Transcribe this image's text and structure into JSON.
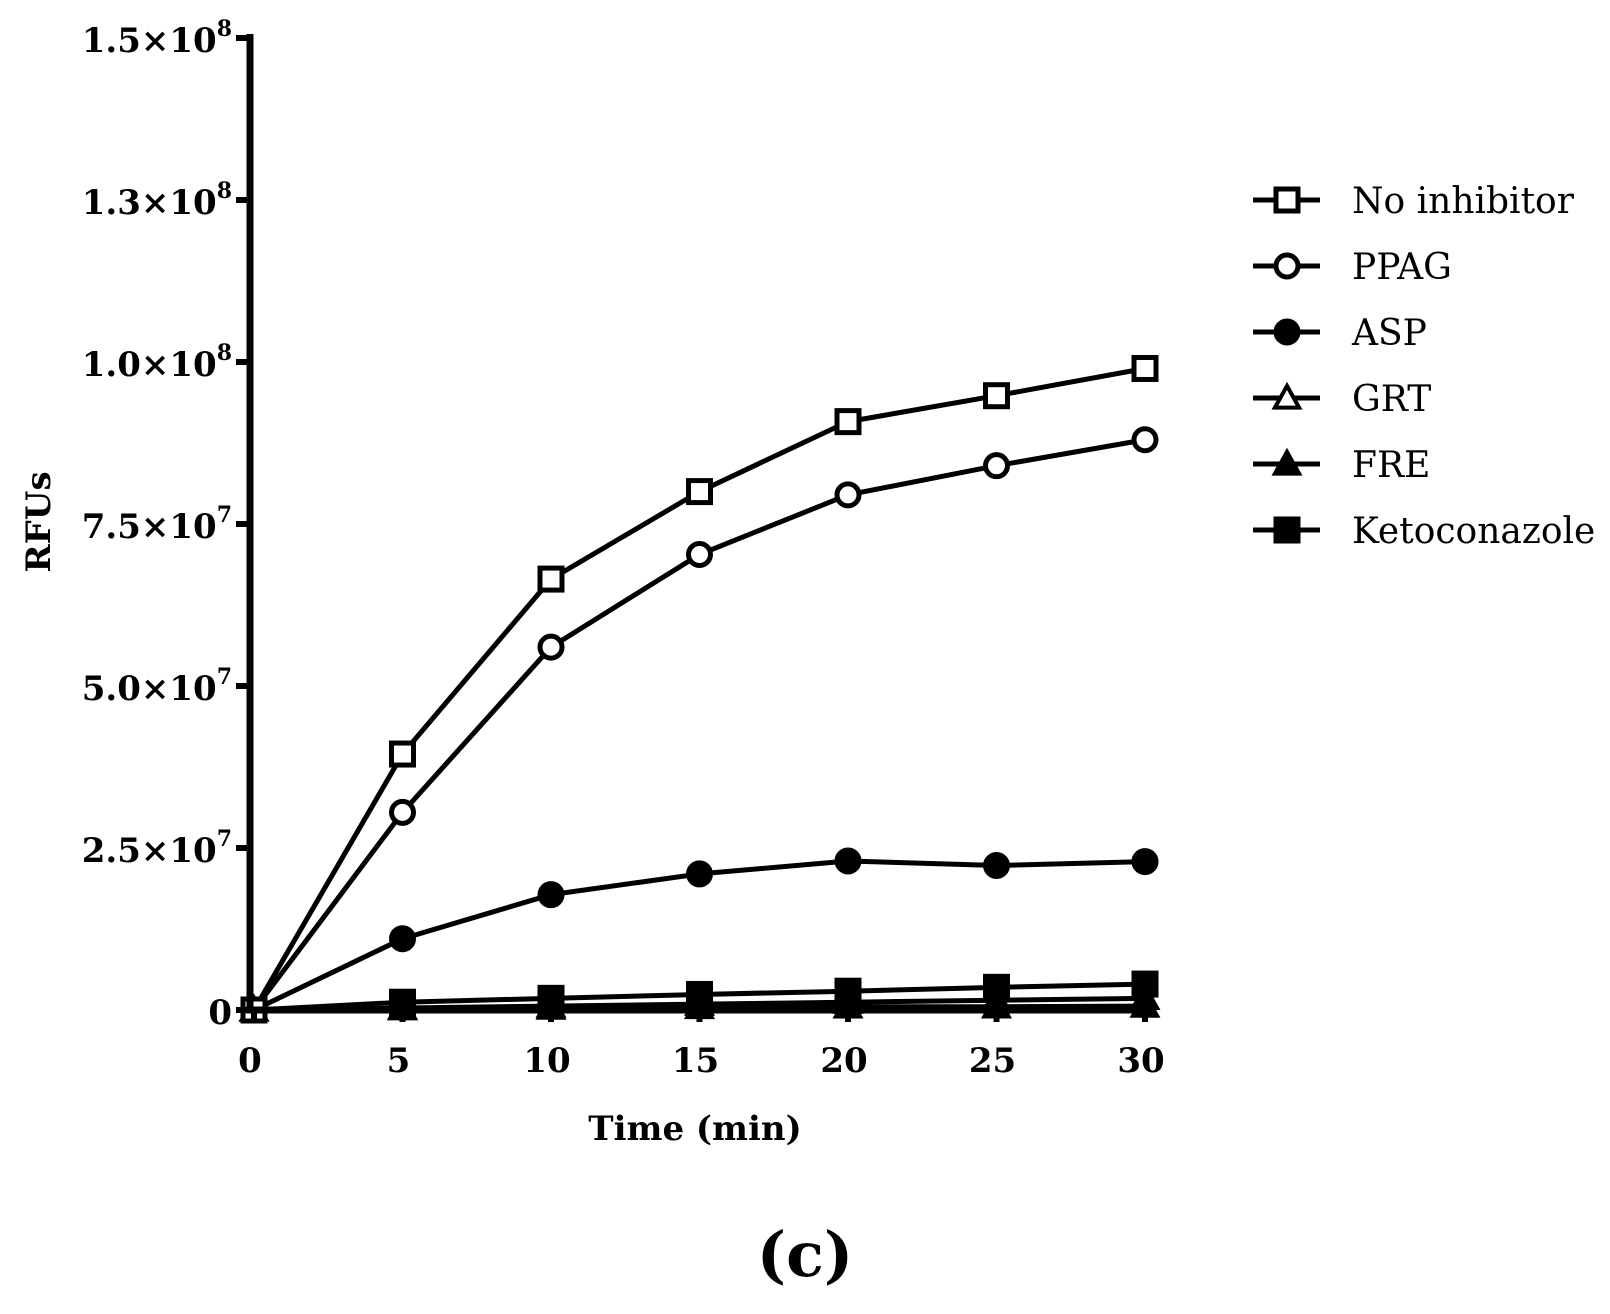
{
  "chart_data": {
    "type": "line",
    "title": "",
    "xlabel": "Time (min)",
    "ylabel": "RFUs",
    "xlim": [
      0,
      30
    ],
    "ylim": [
      0,
      150000000
    ],
    "x": [
      0,
      5,
      10,
      15,
      20,
      25,
      30
    ],
    "xticks": [
      {
        "value": 0,
        "label": "0"
      },
      {
        "value": 5,
        "label": "5"
      },
      {
        "value": 10,
        "label": "10"
      },
      {
        "value": 15,
        "label": "15"
      },
      {
        "value": 20,
        "label": "20"
      },
      {
        "value": 25,
        "label": "25"
      },
      {
        "value": 30,
        "label": "30"
      }
    ],
    "yticks": [
      {
        "value": 0,
        "mantissa": "0",
        "exp": ""
      },
      {
        "value": 25000000,
        "mantissa": "2.5×10",
        "exp": "7"
      },
      {
        "value": 50000000,
        "mantissa": "5.0×10",
        "exp": "7"
      },
      {
        "value": 75000000,
        "mantissa": "7.5×10",
        "exp": "7"
      },
      {
        "value": 100000000,
        "mantissa": "1.0×10",
        "exp": "8"
      },
      {
        "value": 125000000,
        "mantissa": "1.3×10",
        "exp": "8"
      },
      {
        "value": 150000000,
        "mantissa": "1.5×10",
        "exp": "8"
      }
    ],
    "grid": false,
    "legend_position": "right",
    "series": [
      {
        "name": "No inhibitor",
        "marker": "square-open",
        "values": [
          0,
          39500000,
          66500000,
          80000000,
          90800000,
          94800000,
          99000000
        ]
      },
      {
        "name": "PPAG",
        "marker": "circle-open",
        "values": [
          0,
          30500000,
          56000000,
          70300000,
          79500000,
          84000000,
          88000000
        ]
      },
      {
        "name": "ASP",
        "marker": "circle-filled",
        "values": [
          0,
          11000000,
          17800000,
          21000000,
          23000000,
          22300000,
          22900000
        ]
      },
      {
        "name": "GRT",
        "marker": "triangle-open",
        "values": [
          0,
          300000,
          600000,
          900000,
          1200000,
          1500000,
          1800000
        ]
      },
      {
        "name": "FRE",
        "marker": "triangle-filled",
        "values": [
          0,
          200000,
          300000,
          400000,
          500000,
          500000,
          600000
        ]
      },
      {
        "name": "Ketoconazole",
        "marker": "square-filled",
        "values": [
          0,
          1200000,
          1800000,
          2400000,
          2900000,
          3500000,
          4000000
        ]
      }
    ]
  },
  "panel_label": "(c)"
}
